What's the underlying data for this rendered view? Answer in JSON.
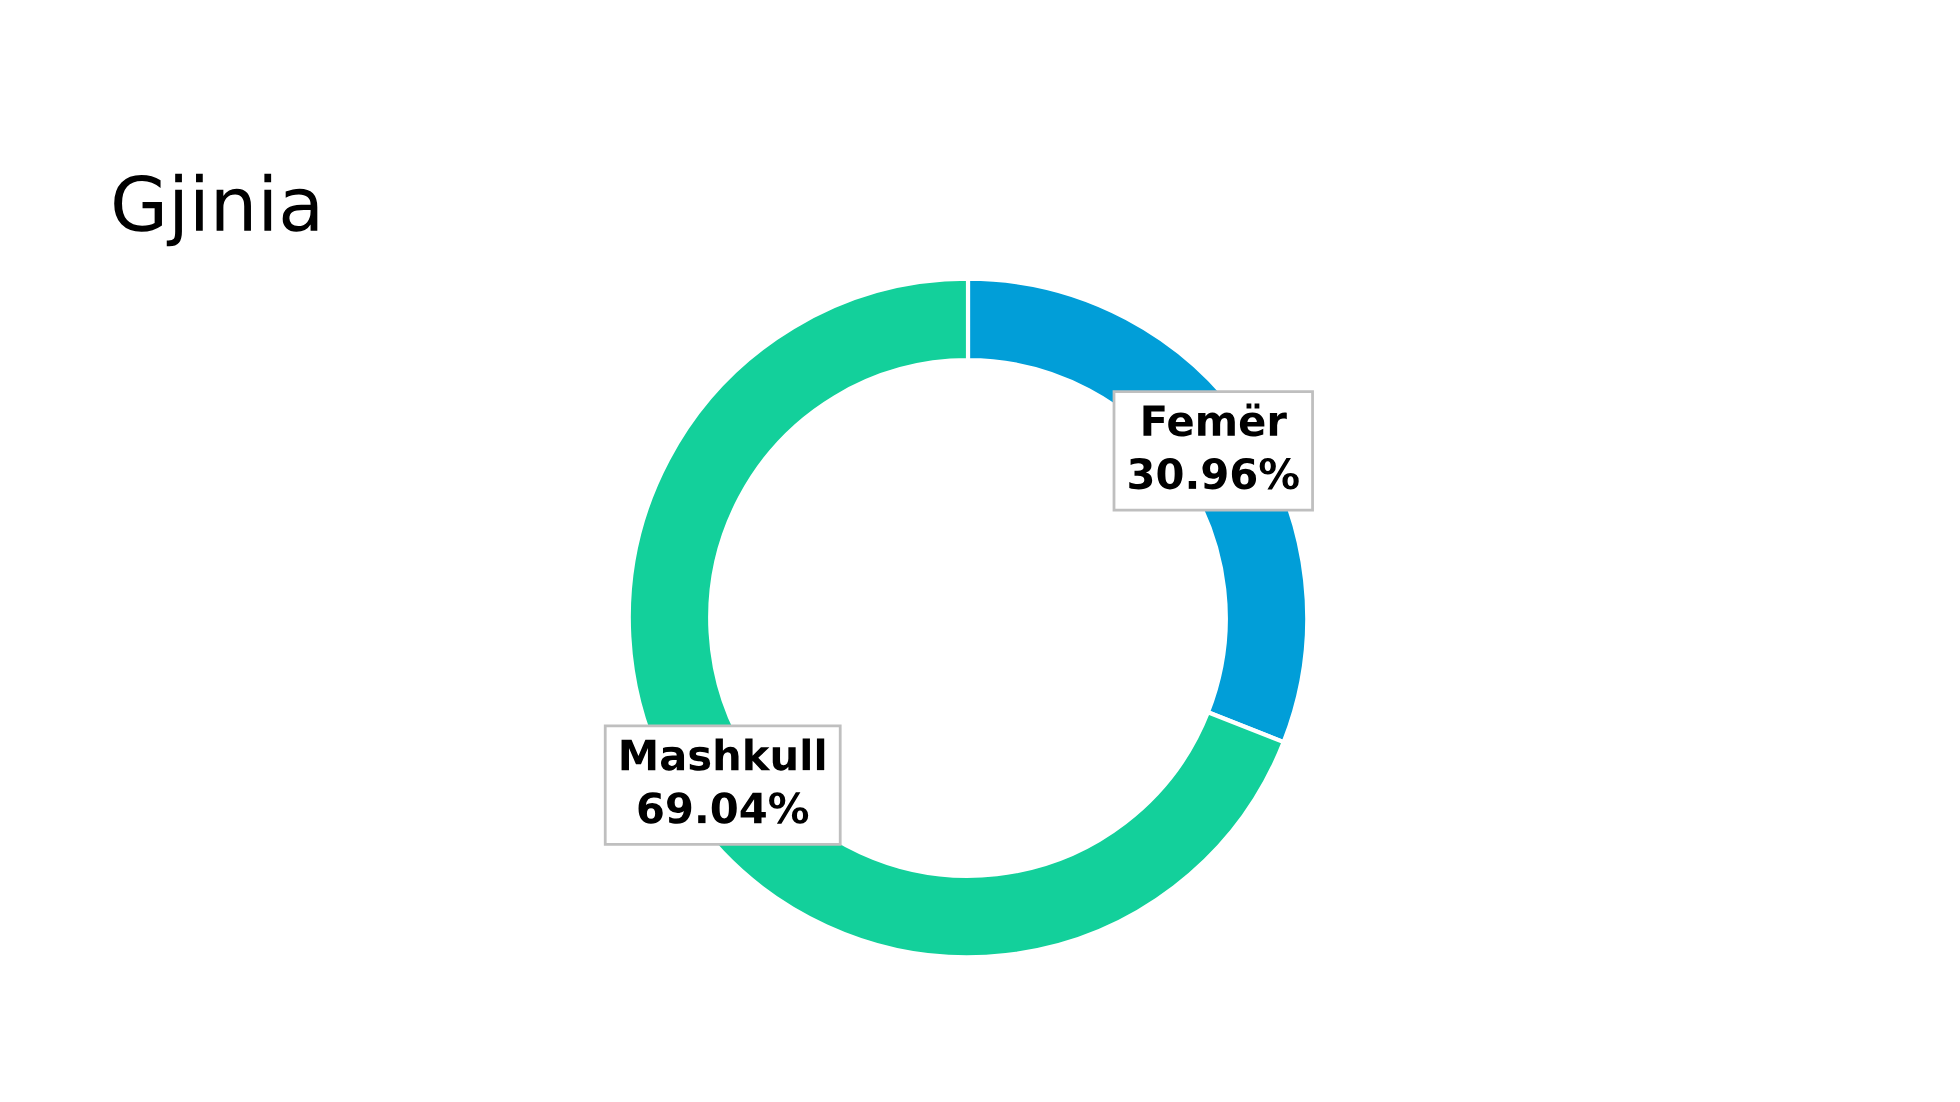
{
  "chart_data": {
    "type": "donut",
    "title": "Gjinia",
    "categories": [
      "Femër",
      "Mashkull"
    ],
    "values": [
      30.96,
      69.04
    ],
    "colors": [
      "#019ed8",
      "#13d09b"
    ],
    "value_labels": [
      "30.96%",
      "69.04%"
    ]
  }
}
